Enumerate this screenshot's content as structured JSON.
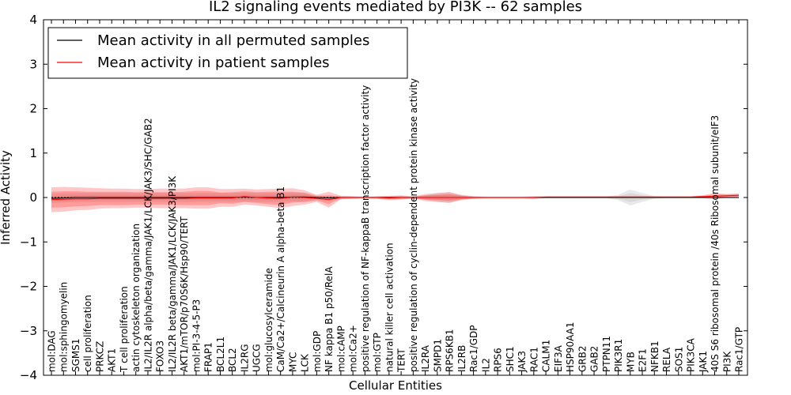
{
  "chart_data": {
    "type": "line",
    "title": "IL2 signaling events mediated by PI3K -- 62 samples",
    "xlabel": "Cellular Entities",
    "ylabel": "Inferred Activity",
    "ylim": [
      -4,
      4
    ],
    "yticks": [
      -4,
      -3,
      -2,
      -1,
      0,
      1,
      2,
      3,
      4
    ],
    "ytick_labels": [
      "−4",
      "−3",
      "−2",
      "−1",
      "0",
      "1",
      "2",
      "3",
      "4"
    ],
    "grid": false,
    "legend_position": "top-left",
    "categories": [
      "mol:DAG",
      "mol:sphingomyelin",
      "SGMS1",
      "cell proliferation",
      "PRKCZ",
      "AKT1",
      "T cell proliferation",
      "actin cytoskeleton organization",
      "IL2/IL2R alpha/beta/gamma/JAK1/LCK/JAK3/SHC/GAB2",
      "FOXO3",
      "IL2/IL2R beta/gamma/JAK1/LCK/JAK3/PI3K",
      "AKT1/mTOR/p70S6K/Hsp90/TERT",
      "mol:PI-3-4-5-P3",
      "FRAP1",
      "BCL2L1",
      "BCL2",
      "IL2RG",
      "UGCG",
      "mol:glucosylceramide",
      "CaM/Ca2+/Calcineurin A alpha-beta B1",
      "MYC",
      "LCK",
      "mol:GDP",
      "NF kappa B1 p50/RelA",
      "mol:cAMP",
      "mol:Ca2+",
      "positive regulation of NF-kappaB transcription factor activity",
      "mol:GTP",
      "natural killer cell activation",
      "TERT",
      "positive regulation of cyclin-dependent protein kinase activity",
      "IL2RA",
      "SMPD1",
      "RPS6KB1",
      "IL2RB",
      "Rac1/GDP",
      "IL2",
      "RPS6",
      "SHC1",
      "JAK3",
      "RAC1",
      "CALM1",
      "EIF3A",
      "HSP90AA1",
      "GRB2",
      "GAB2",
      "PTPN11",
      "PIK3R1",
      "MYB",
      "E2F1",
      "NFKB1",
      "RELA",
      "SOS1",
      "PIK3CA",
      "JAK1",
      "40S S6 ribosomal protein /40s Ribosomal subunit/eIF3",
      "PI3K",
      "Rac1/GTP"
    ],
    "series": [
      {
        "name": "Mean activity in all permuted samples",
        "color": "#000000",
        "values": [
          -0.02,
          -0.01,
          0.0,
          0.0,
          0.0,
          0.0,
          0.0,
          0.0,
          0.0,
          0.0,
          0.0,
          0.0,
          0.0,
          0.0,
          0.0,
          0.0,
          0.01,
          0.0,
          0.0,
          0.0,
          0.01,
          0.01,
          0.0,
          -0.01,
          0.0,
          0.0,
          0.0,
          0.0,
          0.0,
          0.0,
          0.0,
          0.0,
          0.0,
          0.0,
          0.0,
          0.0,
          0.0,
          0.0,
          0.0,
          0.0,
          0.0,
          0.0,
          0.0,
          0.0,
          0.0,
          0.0,
          0.0,
          0.0,
          0.0,
          0.0,
          0.0,
          0.0,
          0.0,
          0.0,
          0.0,
          0.0,
          0.0,
          0.0
        ],
        "band_inner": [
          0.05,
          0.05,
          0.05,
          0.05,
          0.05,
          0.05,
          0.05,
          0.05,
          0.05,
          0.05,
          0.05,
          0.05,
          0.05,
          0.05,
          0.05,
          0.05,
          0.05,
          0.05,
          0.05,
          0.05,
          0.05,
          0.05,
          0.03,
          0.03,
          0.02,
          0.01,
          0.01,
          0.01,
          0.01,
          0.02,
          0.02,
          0.03,
          0.05,
          0.05,
          0.03,
          0.01,
          0.01,
          0.01,
          0.01,
          0.01,
          0.01,
          0.01,
          0.01,
          0.01,
          0.01,
          0.01,
          0.01,
          0.03,
          0.1,
          0.05,
          0.02,
          0.01,
          0.01,
          0.01,
          0.01,
          0.01,
          0.01,
          0.01
        ],
        "band_outer": [
          0.1,
          0.1,
          0.1,
          0.1,
          0.1,
          0.1,
          0.1,
          0.1,
          0.1,
          0.1,
          0.1,
          0.1,
          0.1,
          0.1,
          0.1,
          0.1,
          0.1,
          0.1,
          0.1,
          0.1,
          0.1,
          0.1,
          0.05,
          0.05,
          0.03,
          0.02,
          0.02,
          0.02,
          0.02,
          0.03,
          0.03,
          0.05,
          0.1,
          0.12,
          0.05,
          0.02,
          0.02,
          0.02,
          0.02,
          0.02,
          0.02,
          0.02,
          0.02,
          0.02,
          0.02,
          0.02,
          0.02,
          0.06,
          0.18,
          0.1,
          0.03,
          0.02,
          0.02,
          0.02,
          0.02,
          0.02,
          0.02,
          0.02
        ]
      },
      {
        "name": "Mean activity in patient samples",
        "color": "#ff0000",
        "values": [
          -0.05,
          -0.04,
          -0.03,
          -0.03,
          -0.02,
          -0.02,
          -0.02,
          -0.02,
          -0.02,
          -0.02,
          -0.02,
          -0.02,
          -0.01,
          -0.01,
          -0.01,
          -0.01,
          0.02,
          0.0,
          -0.01,
          -0.02,
          0.01,
          0.0,
          -0.02,
          -0.05,
          0.0,
          0.0,
          0.0,
          0.0,
          -0.01,
          0.0,
          0.0,
          0.0,
          0.0,
          0.0,
          0.0,
          0.0,
          0.0,
          0.0,
          0.0,
          0.0,
          0.0,
          0.01,
          0.01,
          0.01,
          0.01,
          0.01,
          0.01,
          0.01,
          0.01,
          0.01,
          0.01,
          0.01,
          0.01,
          0.01,
          0.02,
          0.03,
          0.04,
          0.05
        ],
        "band_inner": [
          0.18,
          0.18,
          0.17,
          0.16,
          0.15,
          0.15,
          0.15,
          0.14,
          0.14,
          0.14,
          0.14,
          0.15,
          0.16,
          0.16,
          0.12,
          0.13,
          0.12,
          0.12,
          0.14,
          0.15,
          0.12,
          0.1,
          0.05,
          0.1,
          0.02,
          0.02,
          0.01,
          0.02,
          0.03,
          0.03,
          0.01,
          0.05,
          0.06,
          0.08,
          0.04,
          0.02,
          0.01,
          0.01,
          0.01,
          0.01,
          0.02,
          0.01,
          0.01,
          0.01,
          0.01,
          0.01,
          0.01,
          0.01,
          0.01,
          0.01,
          0.01,
          0.01,
          0.01,
          0.01,
          0.02,
          0.04,
          0.03,
          0.03
        ],
        "band_outer": [
          0.28,
          0.28,
          0.26,
          0.25,
          0.23,
          0.22,
          0.22,
          0.21,
          0.21,
          0.22,
          0.22,
          0.22,
          0.24,
          0.24,
          0.2,
          0.2,
          0.18,
          0.18,
          0.2,
          0.22,
          0.2,
          0.16,
          0.08,
          0.18,
          0.04,
          0.03,
          0.02,
          0.03,
          0.05,
          0.05,
          0.02,
          0.08,
          0.1,
          0.12,
          0.06,
          0.03,
          0.02,
          0.02,
          0.02,
          0.02,
          0.03,
          0.02,
          0.02,
          0.02,
          0.02,
          0.02,
          0.02,
          0.02,
          0.02,
          0.02,
          0.02,
          0.02,
          0.02,
          0.02,
          0.03,
          0.07,
          0.04,
          0.04
        ]
      }
    ]
  }
}
